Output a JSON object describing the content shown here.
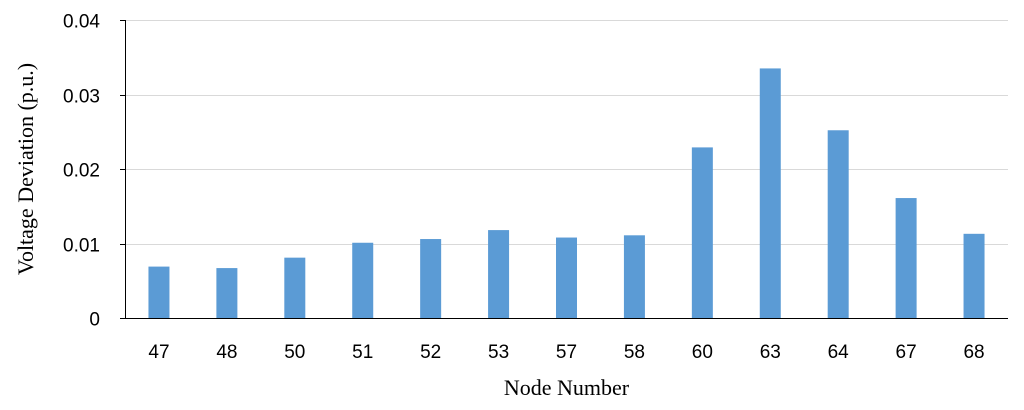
{
  "chart_data": {
    "type": "bar",
    "title": "",
    "xlabel": "Node Number",
    "ylabel": "Voltage Deviation (p.u.)",
    "categories": [
      "47",
      "48",
      "50",
      "51",
      "52",
      "53",
      "57",
      "58",
      "60",
      "63",
      "64",
      "67",
      "68"
    ],
    "series": [
      {
        "values": [
          0.0069,
          0.0067,
          0.0081,
          0.0101,
          0.0106,
          0.0118,
          0.0108,
          0.0111,
          0.0229,
          0.0335,
          0.0252,
          0.0161,
          0.0113
        ]
      }
    ],
    "ylim": [
      0,
      0.04
    ],
    "yticks": [
      "0",
      "0.01",
      "0.02",
      "0.03",
      "0.04"
    ],
    "grid": true,
    "legend": "none",
    "colors": {
      "bar": "#5B9BD5",
      "grid": "#D9D9D9",
      "axis": "#000000"
    }
  }
}
